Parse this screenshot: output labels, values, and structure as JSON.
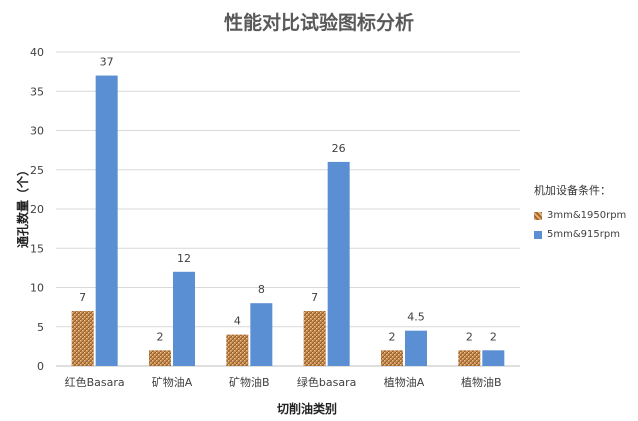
{
  "chart_data": {
    "type": "bar",
    "title": "性能对比试验图标分析",
    "xlabel": "切削油类别",
    "ylabel": "通孔数量（个）",
    "categories": [
      "红色Basara",
      "矿物油A",
      "矿物油B",
      "绿色basara",
      "植物油A",
      "植物油B"
    ],
    "series": [
      {
        "name": "3mm&1950rpm",
        "values": [
          7,
          2,
          4,
          7,
          2,
          2
        ],
        "color": "#c58a4e",
        "pattern": "woven"
      },
      {
        "name": "5mm&915rpm",
        "values": [
          37,
          12,
          8,
          26,
          4.5,
          2
        ],
        "color": "#5b8fd3"
      }
    ],
    "data_labels": [
      [
        "7",
        "2",
        "4",
        "7",
        "2",
        "2"
      ],
      [
        "37",
        "12",
        "8",
        "26",
        "4.5",
        "2"
      ]
    ],
    "ylim": [
      0,
      40
    ],
    "yticks": [
      0,
      5,
      10,
      15,
      20,
      25,
      30,
      35,
      40
    ],
    "grid": true,
    "legend_title": "机加设备条件：",
    "legend_position": "right"
  }
}
